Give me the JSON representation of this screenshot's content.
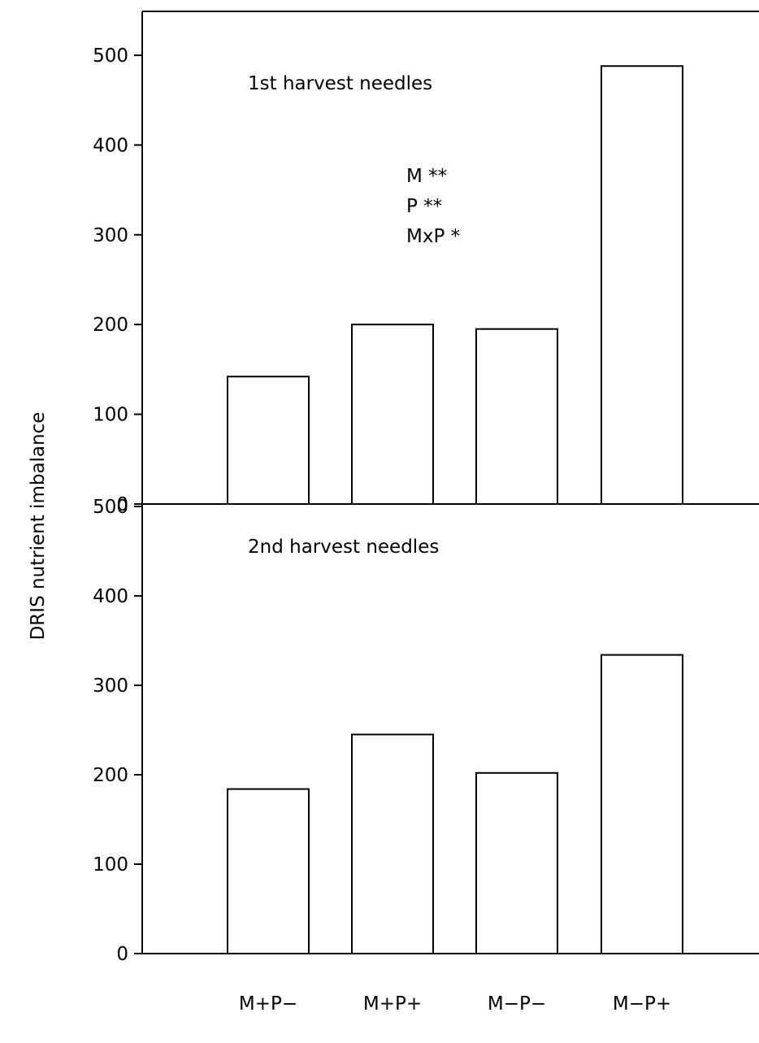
{
  "chart_data": [
    {
      "type": "bar",
      "title": "1st harvest needles",
      "categories": [
        "M+P−",
        "M+P+",
        "M−P−",
        "M−P+"
      ],
      "values": [
        142,
        200,
        195,
        488
      ],
      "ylim": [
        0,
        550
      ],
      "yticks": [
        0,
        100,
        200,
        300,
        400,
        500
      ],
      "annotations": [
        "M **",
        "P **",
        "MxP *"
      ],
      "grid": false
    },
    {
      "type": "bar",
      "title": "2nd harvest needles",
      "categories": [
        "M+P−",
        "M+P+",
        "M−P−",
        "M−P+"
      ],
      "values": [
        184,
        245,
        202,
        334
      ],
      "ylim": [
        0,
        550
      ],
      "yticks": [
        0,
        100,
        200,
        300,
        400,
        500
      ],
      "grid": false
    }
  ],
  "ylabel": "DRIS nutrient imbalance",
  "xlabels": [
    "M+P−",
    "M+P+",
    "M−P−",
    "M−P+"
  ]
}
